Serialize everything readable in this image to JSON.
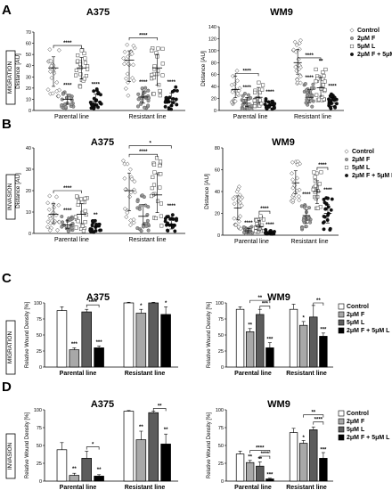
{
  "panel_letters": [
    "A",
    "B",
    "C",
    "D"
  ],
  "row_labels": [
    "MIGRATION",
    "INVASION",
    "MIGRATION",
    "INVASION"
  ],
  "chart_data": [
    {
      "type": "scatter",
      "panel": "A",
      "title": "A375",
      "ylabel": "Distance [AU]",
      "ylim": [
        0,
        70
      ],
      "yticks": [
        0,
        10,
        20,
        30,
        40,
        50,
        60,
        70
      ],
      "groups": [
        "Parental line",
        "Resistant line"
      ],
      "series": [
        {
          "name": "Control",
          "marker": "diamond",
          "values": [
            [
              38,
              56,
              8
            ],
            [
              45,
              60,
              10
            ]
          ]
        },
        {
          "name": "2μM F",
          "marker": "circle-gray",
          "values": [
            [
              10,
              18,
              2
            ],
            [
              12,
              22,
              2
            ]
          ]
        },
        {
          "name": "5μM L",
          "marker": "square",
          "values": [
            [
              38,
              55,
              20
            ],
            [
              38,
              60,
              10
            ]
          ]
        },
        {
          "name": "2μM F + 5μM L",
          "marker": "circle-black",
          "values": [
            [
              8,
              20,
              1
            ],
            [
              8,
              22,
              1
            ]
          ]
        }
      ],
      "brackets": [
        {
          "group": 0,
          "from": 0,
          "to": 2,
          "y": 58,
          "label": "****"
        },
        {
          "group": 1,
          "from": 0,
          "to": 2,
          "y": 65,
          "label": "****"
        }
      ],
      "point_stars": [
        {
          "group": 0,
          "series": 1,
          "y": 21,
          "label": "****"
        },
        {
          "group": 0,
          "series": 3,
          "y": 22,
          "label": "****"
        },
        {
          "group": 1,
          "series": 1,
          "y": 24,
          "label": "****"
        },
        {
          "group": 1,
          "series": 3,
          "y": 24,
          "label": "****"
        }
      ]
    },
    {
      "type": "scatter",
      "panel": "A",
      "title": "WM9",
      "ylabel": "Distance [AU]",
      "ylim": [
        0,
        140
      ],
      "yticks": [
        0,
        20,
        40,
        60,
        80,
        100,
        120,
        140
      ],
      "groups": [
        "Parental line",
        "Resistant line"
      ],
      "series": [
        {
          "name": "Control",
          "marker": "diamond",
          "values": [
            [
              35,
              75,
              10
            ],
            [
              80,
              120,
              45
            ]
          ]
        },
        {
          "name": "2μM F",
          "marker": "circle-gray",
          "values": [
            [
              12,
              30,
              2
            ],
            [
              22,
              45,
              5
            ]
          ]
        },
        {
          "name": "5μM L",
          "marker": "square",
          "values": [
            [
              22,
              52,
              5
            ],
            [
              38,
              70,
              12
            ]
          ]
        },
        {
          "name": "2μM F + 5μM L",
          "marker": "circle-black",
          "values": [
            [
              8,
              20,
              1
            ],
            [
              12,
              30,
              3
            ]
          ]
        }
      ],
      "brackets": [
        {
          "group": 0,
          "from": 0,
          "to": 2,
          "y": 62,
          "label": "****"
        },
        {
          "group": 1,
          "from": 0,
          "to": 2,
          "y": 88,
          "label": "****"
        }
      ],
      "point_stars": [
        {
          "group": 0,
          "series": 1,
          "y": 36,
          "label": "****"
        },
        {
          "group": 0,
          "series": 3,
          "y": 28,
          "label": "****"
        },
        {
          "group": 1,
          "series": 1,
          "y": 52,
          "label": "****"
        },
        {
          "group": 1,
          "series": 2,
          "y": 80,
          "label": "**"
        },
        {
          "group": 1,
          "series": 3,
          "y": 38,
          "label": "****"
        }
      ],
      "legend": [
        "Control",
        "2μM F",
        "5μM L",
        "2μM F + 5μM L"
      ]
    },
    {
      "type": "scatter",
      "panel": "B",
      "title": "A375",
      "ylabel": "Distance [AU]",
      "ylim": [
        0,
        40
      ],
      "yticks": [
        0,
        10,
        20,
        30,
        40
      ],
      "groups": [
        "Parental line",
        "Resistant line"
      ],
      "series": [
        {
          "name": "Control",
          "marker": "diamond",
          "values": [
            [
              9,
              18,
              1
            ],
            [
              20,
              35,
              3
            ]
          ]
        },
        {
          "name": "2μM F",
          "marker": "circle-gray",
          "values": [
            [
              4,
              8,
              1
            ],
            [
              8,
              18,
              1
            ]
          ]
        },
        {
          "name": "5μM L",
          "marker": "square",
          "values": [
            [
              9,
              18,
              1
            ],
            [
              18,
              36,
              3
            ]
          ]
        },
        {
          "name": "2μM F + 5μM L",
          "marker": "circle-black",
          "values": [
            [
              3,
              6,
              0.5
            ],
            [
              4,
              9,
              0.5
            ]
          ]
        }
      ],
      "brackets": [
        {
          "group": 0,
          "from": 0,
          "to": 2,
          "y": 20,
          "label": "****"
        },
        {
          "group": 1,
          "from": 0,
          "to": 2,
          "y": 37,
          "label": "****"
        },
        {
          "group": 1,
          "from": 0,
          "to": 3,
          "y": 41,
          "label": "*"
        }
      ],
      "point_stars": [
        {
          "group": 0,
          "series": 1,
          "y": 10,
          "label": "****"
        },
        {
          "group": 0,
          "series": 3,
          "y": 8,
          "label": "**"
        },
        {
          "group": 1,
          "series": 3,
          "y": 12,
          "label": "****"
        }
      ]
    },
    {
      "type": "scatter",
      "panel": "B",
      "title": "WM9",
      "ylabel": "Distance [AU]",
      "ylim": [
        0,
        80
      ],
      "yticks": [
        0,
        20,
        40,
        60,
        80
      ],
      "groups": [
        "Parental line",
        "Resistant line"
      ],
      "series": [
        {
          "name": "Control",
          "marker": "diamond",
          "values": [
            [
              25,
              45,
              5
            ],
            [
              48,
              68,
              30
            ]
          ]
        },
        {
          "name": "2μM F",
          "marker": "circle-gray",
          "values": [
            [
              4,
              8,
              1
            ],
            [
              18,
              28,
              5
            ]
          ]
        },
        {
          "name": "5μM L",
          "marker": "square",
          "values": [
            [
              8,
              18,
              2
            ],
            [
              40,
              58,
              20
            ]
          ]
        },
        {
          "name": "2μM F + 5μM L",
          "marker": "circle-black",
          "values": [
            [
              2,
              5,
              1
            ],
            [
              20,
              35,
              4
            ]
          ]
        }
      ],
      "brackets": [
        {
          "group": 0,
          "from": 2,
          "to": 3,
          "y": 22,
          "label": "****"
        },
        {
          "group": 1,
          "from": 2,
          "to": 3,
          "y": 62,
          "label": "****"
        }
      ],
      "point_stars": [
        {
          "group": 0,
          "series": 1,
          "y": 10,
          "label": "****"
        },
        {
          "group": 0,
          "series": 3,
          "y": 8,
          "label": "****"
        },
        {
          "group": 1,
          "series": 1,
          "y": 36,
          "label": "****"
        },
        {
          "group": 1,
          "series": 3,
          "y": 40,
          "label": "****"
        }
      ],
      "legend": [
        "Control",
        "2μM F",
        "5μM L",
        "2μM F + 5μM L"
      ]
    },
    {
      "type": "bar",
      "panel": "C",
      "title": "A375",
      "ylabel": "Relative Wound Density [%]",
      "ylim": [
        0,
        100
      ],
      "yticks": [
        0,
        25,
        50,
        75,
        100
      ],
      "groups": [
        "Parental line",
        "Resistant line"
      ],
      "series": [
        {
          "name": "Control",
          "color": "#ffffff",
          "values": [
            88,
            100
          ],
          "errors": [
            6,
            1
          ]
        },
        {
          "name": "2μM F",
          "color": "#a8a8a8",
          "values": [
            27,
            84
          ],
          "errors": [
            3,
            6
          ]
        },
        {
          "name": "5μM L",
          "color": "#5c5c5c",
          "values": [
            86,
            100
          ],
          "errors": [
            4,
            1
          ]
        },
        {
          "name": "2μM F + 5μM L",
          "color": "#000000",
          "values": [
            30,
            82
          ],
          "errors": [
            3,
            12
          ]
        }
      ],
      "brackets": [
        {
          "group": 0,
          "from": 2,
          "to": 3,
          "y": 97,
          "label": "****"
        }
      ],
      "point_stars": [
        {
          "group": 0,
          "series": 1,
          "y": 33,
          "label": "***"
        },
        {
          "group": 0,
          "series": 3,
          "y": 36,
          "label": "***"
        },
        {
          "group": 1,
          "series": 1,
          "y": 93,
          "label": "*"
        },
        {
          "group": 1,
          "series": 3,
          "y": 97,
          "label": "*"
        }
      ]
    },
    {
      "type": "bar",
      "panel": "C",
      "title": "WM9",
      "ylabel": "Relative Wound Density [%]",
      "ylim": [
        0,
        100
      ],
      "yticks": [
        0,
        25,
        50,
        75,
        100
      ],
      "groups": [
        "Parental line",
        "Resistant line"
      ],
      "series": [
        {
          "name": "Control",
          "color": "#ffffff",
          "values": [
            90,
            90
          ],
          "errors": [
            4,
            8
          ]
        },
        {
          "name": "2μM F",
          "color": "#a8a8a8",
          "values": [
            55,
            65
          ],
          "errors": [
            5,
            6
          ]
        },
        {
          "name": "5μM L",
          "color": "#5c5c5c",
          "values": [
            82,
            78
          ],
          "errors": [
            8,
            18
          ]
        },
        {
          "name": "2μM F + 5μM L",
          "color": "#000000",
          "values": [
            30,
            48
          ],
          "errors": [
            8,
            5
          ]
        }
      ],
      "brackets": [
        {
          "group": 0,
          "from": 2,
          "to": 3,
          "y": 95,
          "label": "***"
        },
        {
          "group": 0,
          "from": 1,
          "to": 3,
          "y": 104,
          "label": "**"
        },
        {
          "group": 1,
          "from": 2,
          "to": 3,
          "y": 100,
          "label": "**"
        }
      ],
      "point_stars": [
        {
          "group": 0,
          "series": 1,
          "y": 63,
          "label": "**"
        },
        {
          "group": 0,
          "series": 3,
          "y": 41,
          "label": "***"
        },
        {
          "group": 1,
          "series": 1,
          "y": 74,
          "label": "*"
        },
        {
          "group": 1,
          "series": 3,
          "y": 56,
          "label": "***"
        }
      ],
      "legend": [
        "Control",
        "2μM F",
        "5μM L",
        "2μM F + 5μM L"
      ]
    },
    {
      "type": "bar",
      "panel": "D",
      "title": "A375",
      "ylabel": "Relative Wound Density [%]",
      "ylim": [
        0,
        100
      ],
      "yticks": [
        0,
        25,
        50,
        75,
        100
      ],
      "groups": [
        "Parental line",
        "Resistant line"
      ],
      "series": [
        {
          "name": "Control",
          "color": "#ffffff",
          "values": [
            44,
            98
          ],
          "errors": [
            10,
            1
          ]
        },
        {
          "name": "2μM F",
          "color": "#a8a8a8",
          "values": [
            8,
            58
          ],
          "errors": [
            3,
            12
          ]
        },
        {
          "name": "5μM L",
          "color": "#5c5c5c",
          "values": [
            32,
            96
          ],
          "errors": [
            10,
            2
          ]
        },
        {
          "name": "2μM F + 5μM L",
          "color": "#000000",
          "values": [
            7,
            52
          ],
          "errors": [
            2,
            14
          ]
        }
      ],
      "brackets": [
        {
          "group": 0,
          "from": 2,
          "to": 3,
          "y": 48,
          "label": "*"
        },
        {
          "group": 1,
          "from": 2,
          "to": 3,
          "y": 102,
          "label": "**"
        }
      ],
      "point_stars": [
        {
          "group": 0,
          "series": 1,
          "y": 15,
          "label": "**"
        },
        {
          "group": 0,
          "series": 3,
          "y": 14,
          "label": "**"
        },
        {
          "group": 1,
          "series": 1,
          "y": 74,
          "label": "**"
        },
        {
          "group": 1,
          "series": 3,
          "y": 70,
          "label": "**"
        }
      ]
    },
    {
      "type": "bar",
      "panel": "D",
      "title": "WM9",
      "ylabel": "Relative Wound Density [%]",
      "ylim": [
        0,
        100
      ],
      "yticks": [
        0,
        25,
        50,
        75,
        100
      ],
      "groups": [
        "Parental line",
        "Resistant line"
      ],
      "series": [
        {
          "name": "Control",
          "color": "#ffffff",
          "values": [
            38,
            68
          ],
          "errors": [
            4,
            6
          ]
        },
        {
          "name": "2μM F",
          "color": "#a8a8a8",
          "values": [
            26,
            53
          ],
          "errors": [
            3,
            4
          ]
        },
        {
          "name": "5μM L",
          "color": "#5c5c5c",
          "values": [
            21,
            72
          ],
          "errors": [
            6,
            4
          ]
        },
        {
          "name": "2μM F + 5μM L",
          "color": "#000000",
          "values": [
            3,
            32
          ],
          "errors": [
            1,
            8
          ]
        }
      ],
      "brackets": [
        {
          "group": 0,
          "from": 2,
          "to": 3,
          "y": 35,
          "label": "****"
        },
        {
          "group": 0,
          "from": 1,
          "to": 3,
          "y": 43,
          "label": "****"
        },
        {
          "group": 1,
          "from": 2,
          "to": 3,
          "y": 83,
          "label": "****"
        },
        {
          "group": 1,
          "from": 1,
          "to": 3,
          "y": 93,
          "label": "**"
        }
      ],
      "point_stars": [
        {
          "group": 0,
          "series": 1,
          "y": 32,
          "label": "**"
        },
        {
          "group": 0,
          "series": 2,
          "y": 29,
          "label": "**"
        },
        {
          "group": 0,
          "series": 3,
          "y": 7,
          "label": "***"
        },
        {
          "group": 1,
          "series": 1,
          "y": 59,
          "label": "*"
        },
        {
          "group": 1,
          "series": 3,
          "y": 42,
          "label": "***"
        }
      ],
      "legend": [
        "Control",
        "2μM F",
        "5μM L",
        "2μM F + 5μM L"
      ]
    }
  ]
}
